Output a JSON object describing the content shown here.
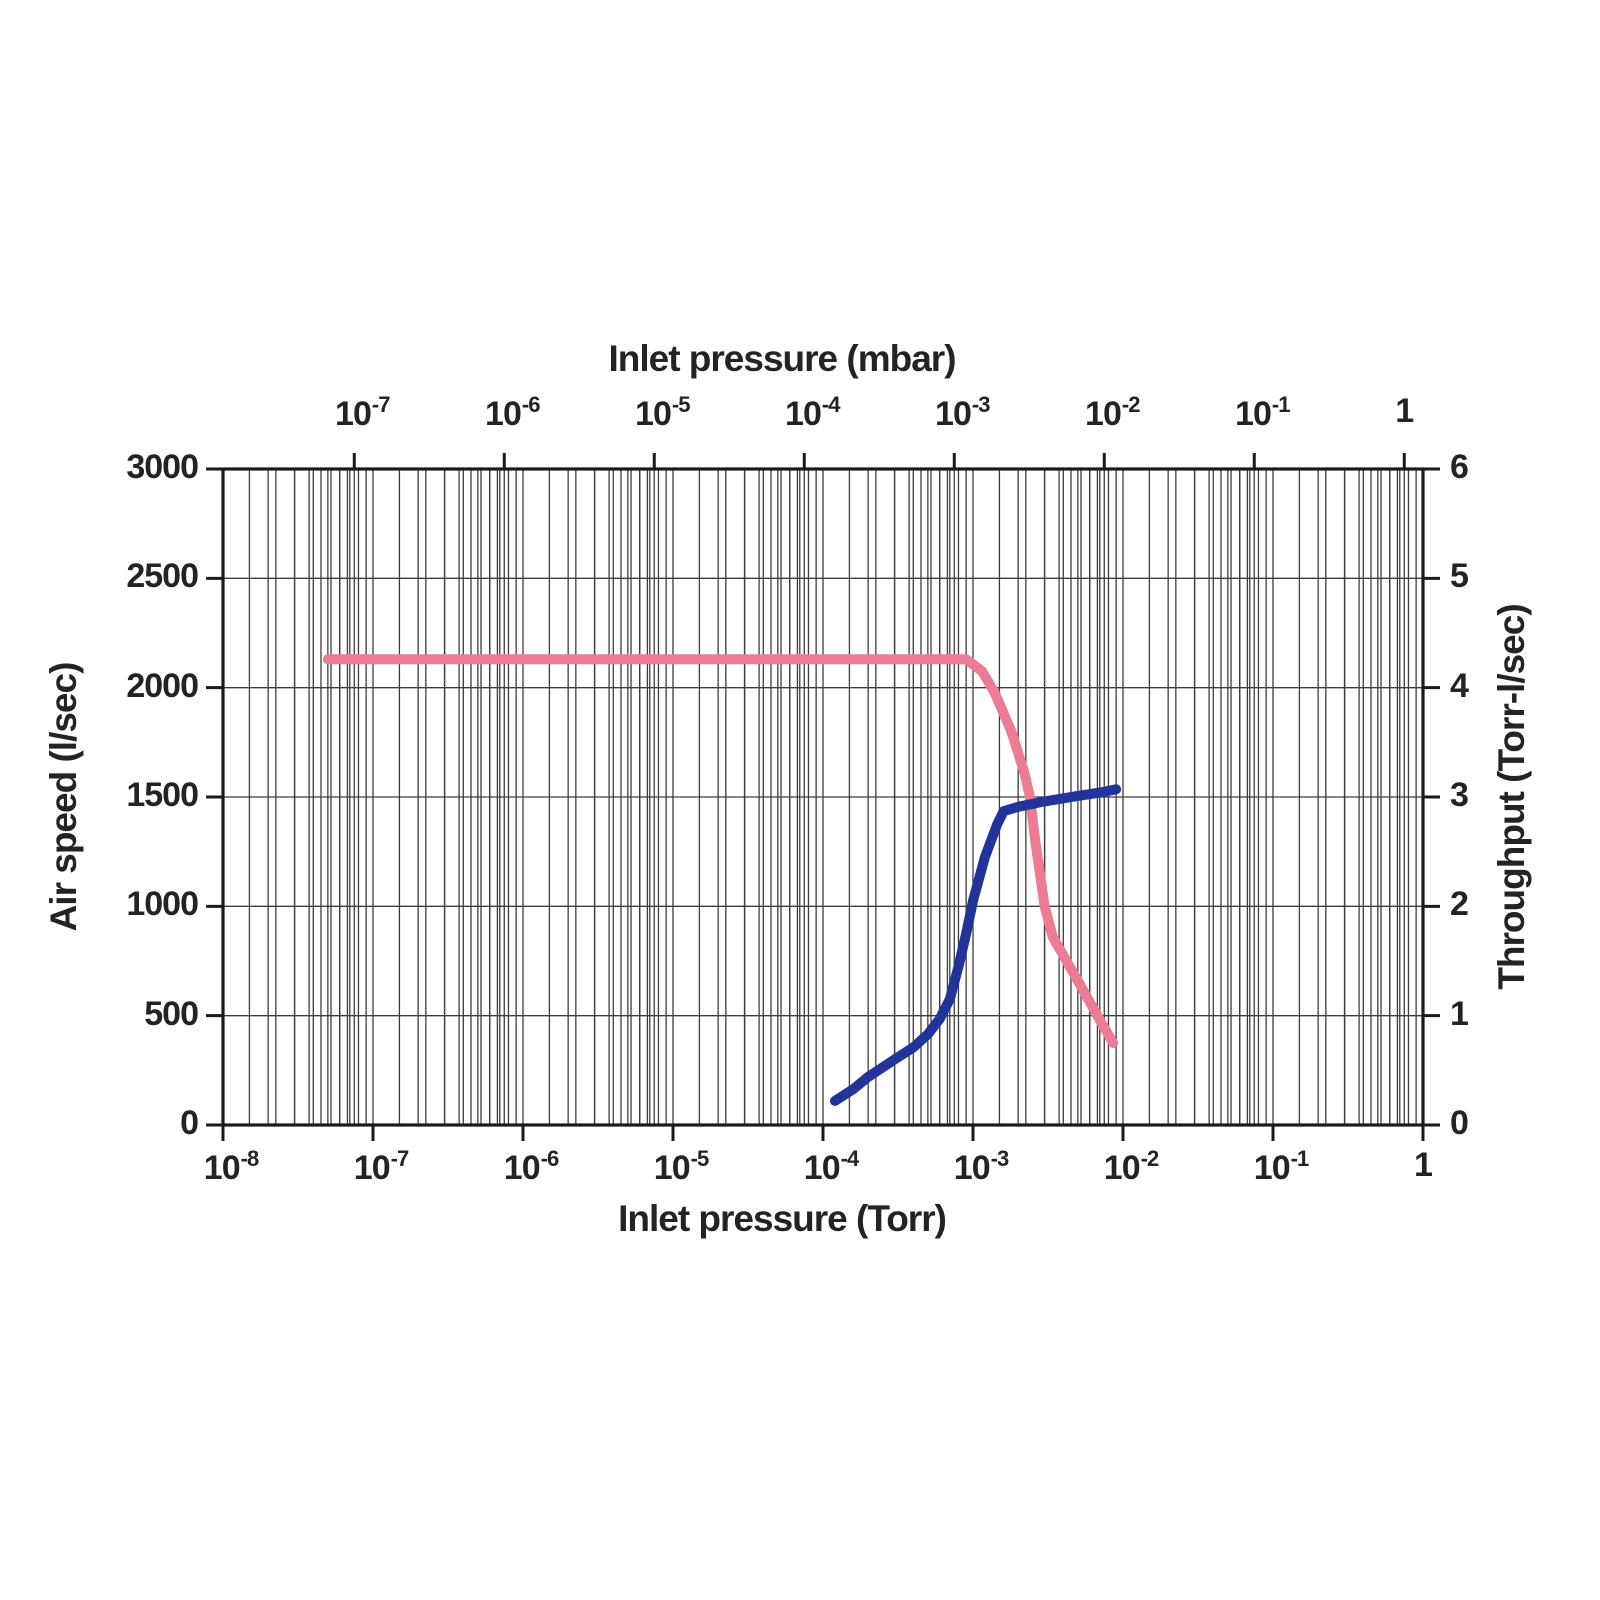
{
  "chart_data": {
    "type": "line",
    "x_axis_bottom": {
      "label": "Inlet pressure (Torr)",
      "scale": "log",
      "tick_labels": [
        "10^-8",
        "10^-7",
        "10^-6",
        "10^-5",
        "10^-4",
        "10^-3",
        "10^-2",
        "10^-1",
        "1"
      ],
      "tick_exponents": [
        -8,
        -7,
        -6,
        -5,
        -4,
        -3,
        -2,
        -1,
        0
      ],
      "range": [
        1e-08,
        1
      ]
    },
    "x_axis_top": {
      "label": "Inlet pressure (mbar)",
      "scale": "log",
      "tick_labels": [
        "10^-7",
        "10^-6",
        "10^-5",
        "10^-4",
        "10^-3",
        "10^-2",
        "10^-1",
        "1"
      ],
      "tick_exponents": [
        -7,
        -6,
        -5,
        -4,
        -3,
        -2,
        -1,
        0
      ],
      "torr_per_mbar": 0.75006
    },
    "y_axis_left": {
      "label": "Air speed (l/sec)",
      "ticks": [
        0,
        500,
        1000,
        1500,
        2000,
        2500,
        3000
      ],
      "range": [
        0,
        3000
      ]
    },
    "y_axis_right": {
      "label": "Throughput (Torr-l/sec)",
      "ticks": [
        0,
        1,
        2,
        3,
        4,
        5,
        6
      ],
      "range": [
        0,
        6
      ]
    },
    "grid": "log-minor-both-torr-and-mbar",
    "series": [
      {
        "name": "air-speed-curve",
        "axis": "left",
        "color": "#ec7b93",
        "points": [
          [
            5e-08,
            2130
          ],
          [
            1e-07,
            2130
          ],
          [
            1e-06,
            2130
          ],
          [
            1e-05,
            2130
          ],
          [
            0.0001,
            2130
          ],
          [
            0.0005,
            2130
          ],
          [
            0.0009,
            2130
          ],
          [
            0.00115,
            2075
          ],
          [
            0.0014,
            1975
          ],
          [
            0.0018,
            1800
          ],
          [
            0.0022,
            1610
          ],
          [
            0.0024,
            1500
          ],
          [
            0.0026,
            1300
          ],
          [
            0.003,
            1000
          ],
          [
            0.0034,
            860
          ],
          [
            0.005,
            660
          ],
          [
            0.007,
            480
          ],
          [
            0.0086,
            375
          ]
        ]
      },
      {
        "name": "throughput-curve",
        "axis": "right",
        "color": "#22339a",
        "points": [
          [
            0.00012,
            0.22
          ],
          [
            0.00016,
            0.33
          ],
          [
            0.0002,
            0.44
          ],
          [
            0.0003,
            0.6
          ],
          [
            0.0004,
            0.71
          ],
          [
            0.0005,
            0.83
          ],
          [
            0.0006,
            0.97
          ],
          [
            0.0007,
            1.15
          ],
          [
            0.0008,
            1.45
          ],
          [
            0.0009,
            1.75
          ],
          [
            0.001,
            2.05
          ],
          [
            0.0012,
            2.45
          ],
          [
            0.00145,
            2.75
          ],
          [
            0.0016,
            2.87
          ],
          [
            0.002,
            2.91
          ],
          [
            0.003,
            2.96
          ],
          [
            0.005,
            3.01
          ],
          [
            0.007,
            3.04
          ],
          [
            0.009,
            3.07
          ]
        ]
      }
    ],
    "colors": {
      "grid": "#3d3d3d",
      "axis": "#1a1a1a",
      "text": "#232323"
    }
  }
}
